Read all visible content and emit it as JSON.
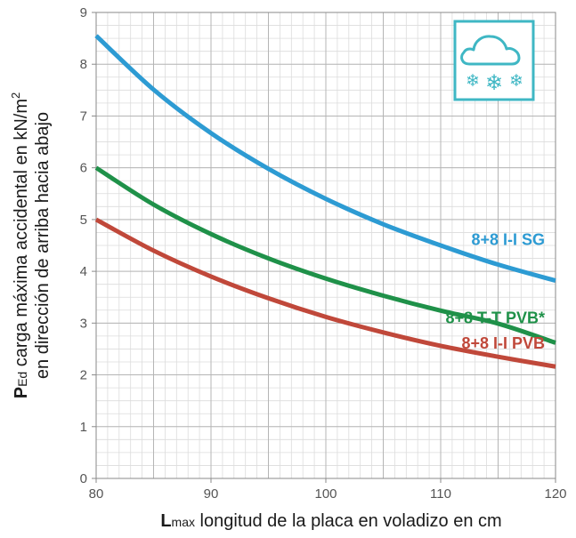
{
  "chart_data": {
    "type": "line",
    "xlabel": {
      "main": "L",
      "sub": "max",
      "rest": " longitud de la placa en voladizo en cm"
    },
    "ylabel": {
      "line1_main": "P",
      "line1_sub": "Ed",
      "line1_rest": " carga máxima accidental en kN/m",
      "line1_sup": "2",
      "line2": "en dirección de arriba hacia abajo"
    },
    "xlim": [
      80,
      120
    ],
    "ylim": [
      0,
      9
    ],
    "x_ticks": [
      80,
      90,
      100,
      110,
      120
    ],
    "y_ticks": [
      0,
      1,
      2,
      3,
      4,
      5,
      6,
      7,
      8,
      9
    ],
    "grid": "on",
    "series": [
      {
        "name": "8+8 I-I SG",
        "color": "#2d9bd3",
        "x": [
          80,
          85,
          90,
          95,
          100,
          105,
          110,
          115,
          120
        ],
        "y": [
          8.55,
          7.51,
          6.67,
          5.98,
          5.4,
          4.91,
          4.5,
          4.13,
          3.82
        ]
      },
      {
        "name": "8+8 T-T PVB*",
        "color": "#1f9149",
        "x": [
          80,
          85,
          90,
          95,
          100,
          105,
          110,
          115,
          120
        ],
        "y": [
          6.0,
          5.29,
          4.72,
          4.25,
          3.86,
          3.53,
          3.24,
          2.99,
          2.62
        ]
      },
      {
        "name": "8+8 I-I PVB",
        "color": "#c0483a",
        "x": [
          80,
          85,
          90,
          95,
          100,
          105,
          110,
          115,
          120
        ],
        "y": [
          5.0,
          4.4,
          3.9,
          3.48,
          3.12,
          2.82,
          2.56,
          2.35,
          2.16
        ]
      }
    ],
    "legend_placement": "inline labels at right, near line ends",
    "icon": "snow-cloud-icon",
    "icon_color": "#3fb7c4"
  }
}
